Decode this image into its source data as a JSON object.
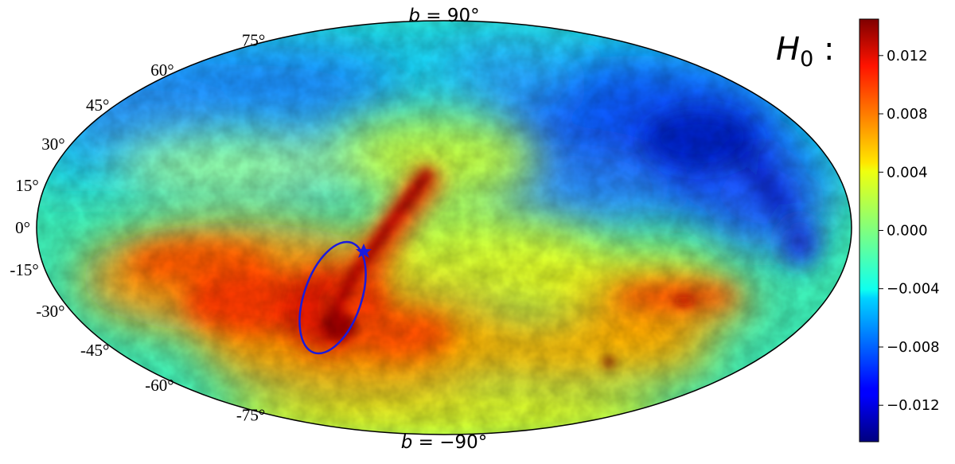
{
  "chart_data": {
    "type": "heatmap",
    "projection": "mollweide",
    "title": "",
    "pole_labels": {
      "north": {
        "var": "b",
        "value": "90°"
      },
      "south": {
        "var": "b",
        "value": "−90°"
      }
    },
    "latitude_labels": [
      "75°",
      "60°",
      "45°",
      "30°",
      "15°",
      "0°",
      "-15°",
      "-30°",
      "-45°",
      "-60°",
      "-75°"
    ],
    "latitude_values": [
      75,
      60,
      45,
      30,
      15,
      0,
      -15,
      -30,
      -45,
      -60,
      -75
    ],
    "colorbar": {
      "label_var": "H",
      "label_sub": "0",
      "label_suffix": " :",
      "colormap": "jet",
      "range": [
        -0.0145,
        0.0145
      ],
      "ticks": [
        0.012,
        0.008,
        0.004,
        0.0,
        -0.004,
        -0.008,
        -0.012
      ],
      "tick_labels": [
        "0.012",
        "0.008",
        "0.004",
        "0.000",
        "−0.004",
        "−0.008",
        "−0.012"
      ]
    },
    "features": {
      "ellipse_color": "#1a1adc",
      "star_color": "#1a1adc"
    },
    "colors": {
      "high": "#7f0000",
      "low": "#00007f",
      "zero": "#7fff7f"
    }
  }
}
